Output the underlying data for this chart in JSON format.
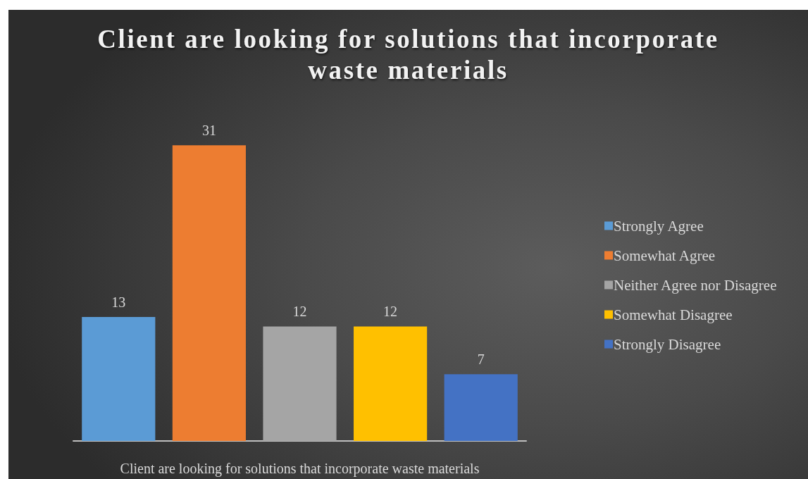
{
  "chart_data": {
    "type": "bar",
    "title": "Client are looking for solutions that incorporate waste materials",
    "xlabel": "Client are looking for solutions that incorporate waste materials",
    "categories": [
      null,
      null,
      null,
      null,
      null
    ],
    "stacked": true,
    "series": [
      {
        "name": "Strongly Agree",
        "color": "#5b9bd5",
        "values": [
          13,
          null,
          null,
          null,
          null
        ]
      },
      {
        "name": "Somewhat Agree",
        "color": "#ed7d31",
        "values": [
          null,
          31,
          null,
          null,
          null
        ]
      },
      {
        "name": "Neither Agree nor Disagree",
        "color": "#a5a5a5",
        "values": [
          null,
          null,
          12,
          null,
          null
        ]
      },
      {
        "name": "Somewhat Disagree",
        "color": "#ffc000",
        "values": [
          null,
          null,
          null,
          12,
          null
        ]
      },
      {
        "name": "Strongly Disagree",
        "color": "#4472c4",
        "values": [
          null,
          null,
          null,
          null,
          7
        ]
      }
    ],
    "data_labels": true,
    "legend": "right"
  }
}
